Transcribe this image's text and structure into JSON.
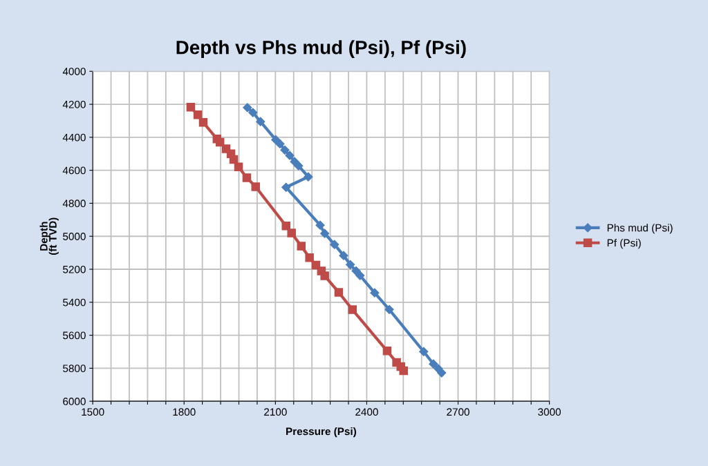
{
  "chart_data": {
    "type": "line",
    "title": "Depth vs Phs mud (Psi), Pf (Psi)",
    "xlabel": "Pressure (Psi)",
    "ylabel": "Depth\n(ft TVD)",
    "xlim": [
      1500,
      3000
    ],
    "ylim": [
      6000,
      4000
    ],
    "xticks": [
      1500,
      {
        "value": 1560,
        "label": null
      },
      {
        "value": 1620,
        "label": null
      },
      {
        "value": 1680,
        "label": null
      },
      {
        "value": 1740,
        "label": null
      },
      1800,
      {
        "value": 1860,
        "label": null
      },
      {
        "value": 1920,
        "label": null
      },
      {
        "value": 1980,
        "label": null
      },
      {
        "value": 2040,
        "label": null
      },
      2100,
      {
        "value": 2160,
        "label": null
      },
      {
        "value": 2220,
        "label": null
      },
      {
        "value": 2280,
        "label": null
      },
      {
        "value": 2340,
        "label": null
      },
      2400,
      {
        "value": 2460,
        "label": null
      },
      {
        "value": 2520,
        "label": null
      },
      {
        "value": 2580,
        "label": null
      },
      {
        "value": 2640,
        "label": null
      },
      2700,
      {
        "value": 2760,
        "label": null
      },
      {
        "value": 2820,
        "label": null
      },
      {
        "value": 2880,
        "label": null
      },
      {
        "value": 2940,
        "label": null
      },
      3000
    ],
    "yticks": [
      4000,
      4200,
      4400,
      4600,
      4800,
      5000,
      5200,
      5400,
      5600,
      5800,
      6000
    ],
    "grid": true,
    "legend": "right",
    "line_style": "solid",
    "series": [
      {
        "name": "Phs mud (Psi)",
        "color": "#4a7ebb",
        "marker": "diamond",
        "x": [
          2008,
          2026,
          2051,
          2101,
          2115,
          2131,
          2147,
          2163,
          2176,
          2208,
          2135,
          2247,
          2262,
          2294,
          2324,
          2346,
          2365,
          2378,
          2426,
          2474,
          2587,
          2619,
          2635,
          2646
        ],
        "values": [
          4220,
          4250,
          4305,
          4415,
          4440,
          4477,
          4510,
          4548,
          4573,
          4640,
          4703,
          4933,
          4983,
          5050,
          5117,
          5172,
          5210,
          5238,
          5343,
          5444,
          5699,
          5774,
          5803,
          5828
        ]
      },
      {
        "name": "Pf (Psi)",
        "color": "#be4b48",
        "marker": "square",
        "x": [
          1822,
          1845,
          1863,
          1908,
          1918,
          1938,
          1954,
          1963,
          1979,
          2006,
          2035,
          2135,
          2153,
          2185,
          2212,
          2233,
          2251,
          2262,
          2308,
          2353,
          2467,
          2498,
          2512,
          2521
        ],
        "values": [
          4218,
          4264,
          4310,
          4410,
          4430,
          4470,
          4500,
          4535,
          4580,
          4645,
          4700,
          4937,
          4980,
          5060,
          5130,
          5175,
          5210,
          5240,
          5340,
          5445,
          5695,
          5765,
          5790,
          5815
        ]
      }
    ]
  }
}
